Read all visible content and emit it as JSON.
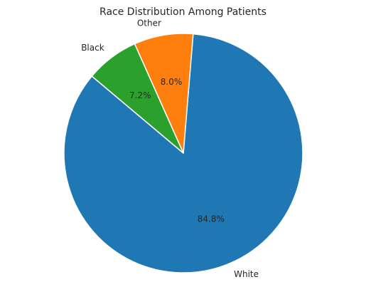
{
  "chart_data": {
    "type": "pie",
    "title": "Race Distribution Among Patients",
    "categories": [
      "White",
      "Other",
      "Black"
    ],
    "values": [
      84.8,
      8.0,
      7.2
    ],
    "value_labels": [
      "84.8%",
      "8.0%",
      "7.2%"
    ],
    "colors": [
      "#1f77b4",
      "#ff7f0e",
      "#2ca02c"
    ],
    "start_angle_deg": 140,
    "direction": "counterclockwise",
    "legend": "none"
  }
}
